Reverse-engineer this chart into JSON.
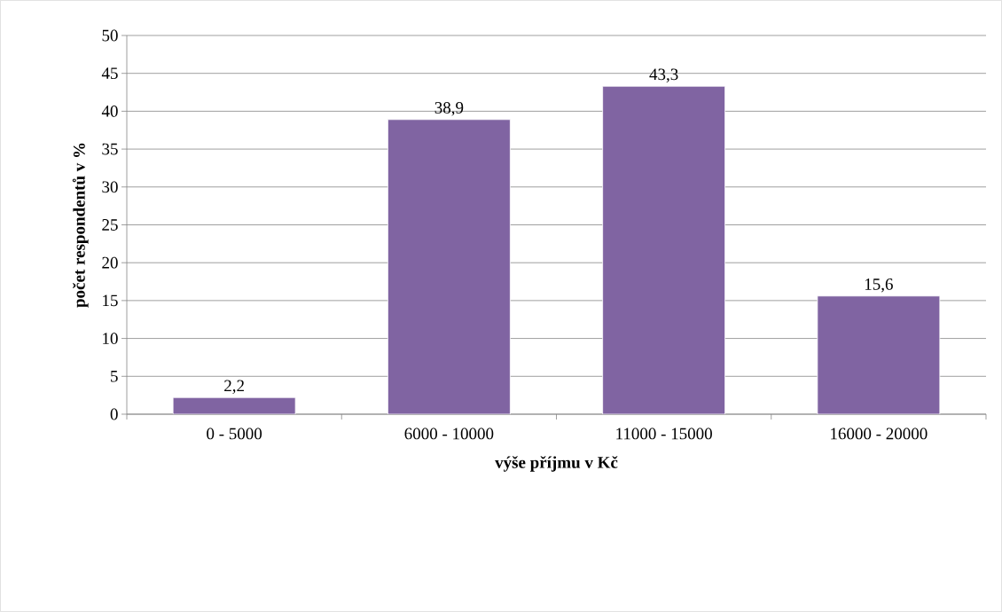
{
  "chart_data": {
    "type": "bar",
    "xlabel": "výše příjmu v Kč",
    "ylabel": "počet respondentů v %",
    "categories": [
      "0 - 5000",
      "6000 - 10000",
      "11000 - 15000",
      "16000 - 20000"
    ],
    "values": [
      2.2,
      38.9,
      43.3,
      15.6
    ],
    "value_labels": [
      "2,2",
      "38,9",
      "43,3",
      "15,6"
    ],
    "color": "#8064a2",
    "ylim": [
      0,
      50
    ],
    "yticks": [
      0,
      5,
      10,
      15,
      20,
      25,
      30,
      35,
      40,
      45,
      50
    ],
    "grid": "y"
  }
}
